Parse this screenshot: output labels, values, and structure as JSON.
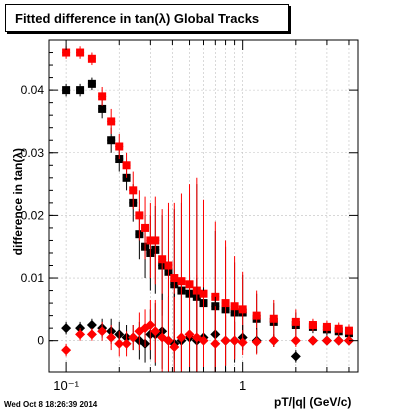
{
  "title": "Fitted difference in tan(λ)  Global Tracks",
  "footer_timestamp": "Wed Oct  8 18:26:39 2014",
  "colors": {
    "series_black": "#000000",
    "series_red": "#ff0000",
    "frame": "#000000",
    "grid": "#c0c0c0"
  },
  "chart_data": {
    "type": "scatter",
    "title": "Fitted difference in tan(λ)  Global Tracks",
    "xlabel": "pT/|q| (GeV/c)",
    "ylabel": "difference in tan(λ)",
    "xscale": "log",
    "xlim": [
      0.08,
      4.5
    ],
    "ylim": [
      -0.005,
      0.048
    ],
    "xticks": [
      {
        "value": 0.1,
        "label": "10⁻¹"
      },
      {
        "value": 1,
        "label": "1"
      }
    ],
    "yticks": [
      {
        "value": 0,
        "label": "0"
      },
      {
        "value": 0.01,
        "label": "0.01"
      },
      {
        "value": 0.02,
        "label": "0.02"
      },
      {
        "value": 0.03,
        "label": "0.03"
      },
      {
        "value": 0.04,
        "label": "0.04"
      }
    ],
    "grid": true,
    "legend": "none",
    "series": [
      {
        "marker": "square",
        "color": "#000000",
        "x": [
          0.1,
          0.12,
          0.14,
          0.16,
          0.18,
          0.2,
          0.22,
          0.24,
          0.26,
          0.28,
          0.3,
          0.32,
          0.35,
          0.38,
          0.41,
          0.45,
          0.5,
          0.55,
          0.6,
          0.7,
          0.8,
          0.9,
          1.0,
          1.2,
          1.5,
          2.0,
          2.5,
          3.0,
          3.5,
          4.0
        ],
        "y": [
          0.04,
          0.04,
          0.041,
          0.037,
          0.032,
          0.029,
          0.026,
          0.022,
          0.017,
          0.015,
          0.014,
          0.0145,
          0.012,
          0.011,
          0.009,
          0.008,
          0.0075,
          0.007,
          0.006,
          0.0055,
          0.005,
          0.0045,
          0.0045,
          0.0035,
          0.003,
          0.0025,
          0.0022,
          0.0018,
          0.0015,
          0.0012
        ],
        "err": [
          0.001,
          0.001,
          0.001,
          0.0015,
          0.002,
          0.002,
          0.002,
          0.003,
          0.004,
          0.005,
          0.006,
          0.007,
          0.008,
          0.01,
          0.012,
          0.014,
          0.016,
          0.018,
          0.015,
          0.012,
          0.01,
          0.008,
          0.006,
          0.004,
          0.003,
          0.002,
          0.001,
          0.001,
          0.001,
          0.001
        ]
      },
      {
        "marker": "square",
        "color": "#ff0000",
        "x": [
          0.1,
          0.12,
          0.14,
          0.16,
          0.18,
          0.2,
          0.22,
          0.24,
          0.26,
          0.28,
          0.3,
          0.32,
          0.35,
          0.38,
          0.41,
          0.45,
          0.5,
          0.55,
          0.6,
          0.7,
          0.8,
          0.9,
          1.0,
          1.2,
          1.5,
          2.0,
          2.5,
          3.0,
          3.5,
          4.0
        ],
        "y": [
          0.046,
          0.046,
          0.045,
          0.039,
          0.035,
          0.031,
          0.028,
          0.024,
          0.02,
          0.018,
          0.016,
          0.016,
          0.013,
          0.012,
          0.01,
          0.0095,
          0.009,
          0.008,
          0.0075,
          0.007,
          0.006,
          0.0055,
          0.005,
          0.004,
          0.0035,
          0.003,
          0.0025,
          0.0022,
          0.0019,
          0.0016
        ],
        "err": [
          0.001,
          0.001,
          0.001,
          0.0015,
          0.002,
          0.002,
          0.002,
          0.003,
          0.004,
          0.005,
          0.006,
          0.007,
          0.008,
          0.01,
          0.012,
          0.014,
          0.016,
          0.018,
          0.015,
          0.012,
          0.01,
          0.008,
          0.006,
          0.004,
          0.003,
          0.002,
          0.001,
          0.001,
          0.001,
          0.001
        ]
      },
      {
        "marker": "diamond",
        "color": "#000000",
        "x": [
          0.1,
          0.12,
          0.14,
          0.16,
          0.18,
          0.2,
          0.22,
          0.24,
          0.26,
          0.28,
          0.3,
          0.32,
          0.35,
          0.38,
          0.41,
          0.45,
          0.5,
          0.55,
          0.6,
          0.7,
          0.8,
          0.9,
          1.0,
          1.2,
          1.5,
          2.0,
          2.5,
          3.0,
          3.5,
          4.0
        ],
        "y": [
          0.002,
          0.002,
          0.0025,
          0.002,
          0.0015,
          0.001,
          0.0005,
          0.0005,
          0.0,
          -0.0005,
          0.001,
          0.001,
          0.0015,
          0.0,
          -0.0005,
          0.0,
          0.0005,
          0.0,
          0.0005,
          0.001,
          0.0,
          0.0,
          0.0005,
          0.0,
          0.0,
          -0.0025,
          0.0,
          0.0,
          0.0,
          0.0
        ],
        "err": [
          0.001,
          0.001,
          0.001,
          0.0015,
          0.002,
          0.002,
          0.002,
          0.002,
          0.003,
          0.003,
          0.004,
          0.005,
          0.006,
          0.007,
          0.008,
          0.009,
          0.01,
          0.01,
          0.008,
          0.006,
          0.004,
          0.003,
          0.002,
          0.002,
          0.001,
          0.001,
          0.0005,
          0.0005,
          0.0005,
          0.0005
        ]
      },
      {
        "marker": "diamond",
        "color": "#ff0000",
        "x": [
          0.1,
          0.12,
          0.14,
          0.16,
          0.18,
          0.2,
          0.22,
          0.24,
          0.26,
          0.28,
          0.3,
          0.32,
          0.35,
          0.38,
          0.41,
          0.45,
          0.5,
          0.55,
          0.6,
          0.7,
          0.8,
          0.9,
          1.0,
          1.2,
          1.5,
          2.0,
          2.5,
          3.0,
          3.5,
          4.0
        ],
        "y": [
          -0.0015,
          0.001,
          0.001,
          0.0015,
          0.0005,
          -0.0005,
          -0.0005,
          0.0005,
          0.0015,
          0.002,
          0.0025,
          0.0015,
          0.0005,
          0.0,
          -0.001,
          0.0005,
          0.001,
          0.0005,
          0.0,
          -0.0005,
          0.0,
          0.0,
          -0.0003,
          -0.0002,
          0.0,
          0.0,
          0.0,
          0.0,
          0.0,
          0.0
        ],
        "err": [
          0.001,
          0.001,
          0.001,
          0.0015,
          0.002,
          0.002,
          0.002,
          0.002,
          0.003,
          0.003,
          0.004,
          0.005,
          0.006,
          0.007,
          0.008,
          0.009,
          0.01,
          0.01,
          0.008,
          0.006,
          0.004,
          0.003,
          0.002,
          0.002,
          0.001,
          0.001,
          0.0005,
          0.0005,
          0.0005,
          0.0005
        ]
      }
    ]
  }
}
